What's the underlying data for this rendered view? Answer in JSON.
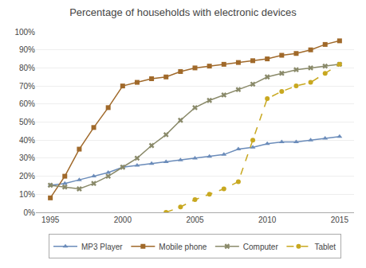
{
  "chart_data": {
    "type": "line",
    "title": "Percentage of households with electronic devices",
    "x": [
      1995,
      1996,
      1997,
      1998,
      1999,
      2000,
      2001,
      2002,
      2003,
      2004,
      2005,
      2006,
      2007,
      2008,
      2009,
      2010,
      2011,
      2012,
      2013,
      2014,
      2015
    ],
    "series": [
      {
        "name": "MP3 Player",
        "color": "#6b8cba",
        "marker": "triangle-up",
        "line_style": "solid",
        "values": [
          15,
          16,
          18,
          20,
          22,
          25,
          26,
          27,
          28,
          29,
          30,
          31,
          32,
          35,
          36,
          38,
          39,
          39,
          40,
          41,
          42
        ]
      },
      {
        "name": "Mobile phone",
        "color": "#a0692a",
        "marker": "square",
        "line_style": "solid",
        "values": [
          8,
          20,
          35,
          47,
          58,
          70,
          72,
          74,
          75,
          78,
          80,
          81,
          82,
          83,
          84,
          85,
          87,
          88,
          90,
          93,
          95
        ]
      },
      {
        "name": "Computer",
        "color": "#8a8a6a",
        "marker": "x",
        "line_style": "solid",
        "values": [
          15,
          14,
          13,
          16,
          20,
          25,
          30,
          37,
          43,
          51,
          58,
          62,
          65,
          68,
          71,
          75,
          77,
          79,
          80,
          81,
          82
        ]
      },
      {
        "name": "Tablet",
        "color": "#c8a820",
        "marker": "circle",
        "line_style": "dashed",
        "values": [
          null,
          null,
          null,
          null,
          null,
          null,
          null,
          null,
          0,
          3,
          7,
          10,
          13,
          17,
          40,
          63,
          67,
          70,
          72,
          77,
          82
        ]
      }
    ],
    "xlim": [
      1994,
      2016
    ],
    "xticks": [
      1995,
      2000,
      2005,
      2010,
      2015
    ],
    "ylim": [
      0,
      100
    ],
    "yticks": [
      {
        "value": 0,
        "label": "0%"
      },
      {
        "value": 10,
        "label": "10%"
      },
      {
        "value": 20,
        "label": "20%"
      },
      {
        "value": 30,
        "label": "30%"
      },
      {
        "value": 40,
        "label": "40%"
      },
      {
        "value": 50,
        "label": "50%"
      },
      {
        "value": 60,
        "label": "60%"
      },
      {
        "value": 70,
        "label": "70%"
      },
      {
        "value": 80,
        "label": "80%"
      },
      {
        "value": 90,
        "label": "90%"
      },
      {
        "value": 100,
        "label": "100%"
      }
    ],
    "grid": true,
    "legend": "bottom"
  }
}
